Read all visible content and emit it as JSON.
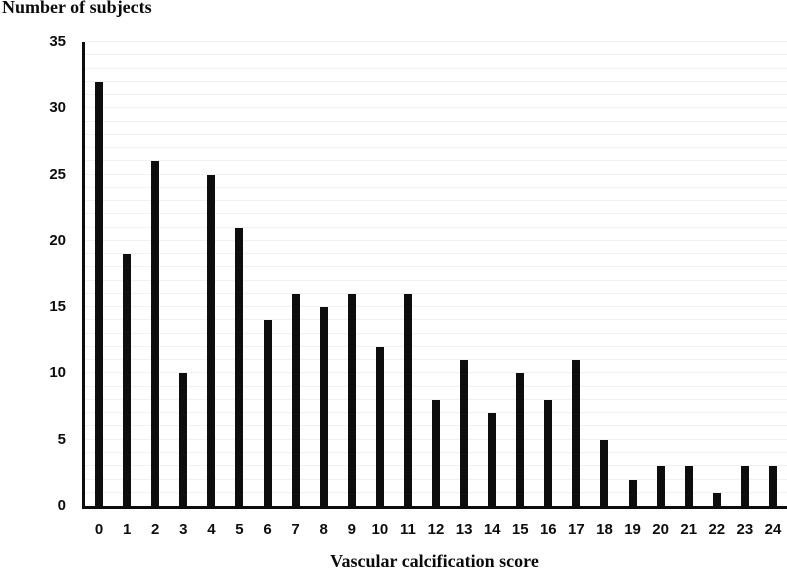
{
  "chart_data": {
    "type": "bar",
    "title": "Number of subjects",
    "xlabel": "Vascular calcification score",
    "ylabel": "Number of subjects",
    "categories": [
      "0",
      "1",
      "2",
      "3",
      "4",
      "5",
      "6",
      "7",
      "8",
      "9",
      "10",
      "11",
      "12",
      "13",
      "14",
      "15",
      "16",
      "17",
      "18",
      "19",
      "20",
      "21",
      "22",
      "23",
      "24"
    ],
    "values": [
      32,
      19,
      26,
      10,
      25,
      21,
      14,
      16,
      15,
      16,
      12,
      16,
      8,
      11,
      7,
      10,
      8,
      11,
      5,
      2,
      3,
      3,
      1,
      3,
      3
    ],
    "ylim": [
      0,
      35
    ],
    "ytick_step": 5,
    "grid_step": 1,
    "grid_on": true,
    "legend_position": "none",
    "bar_color": "#0d0d0d",
    "grid_color": "#f1f1f1",
    "axis_color": "#0d0d0d"
  }
}
